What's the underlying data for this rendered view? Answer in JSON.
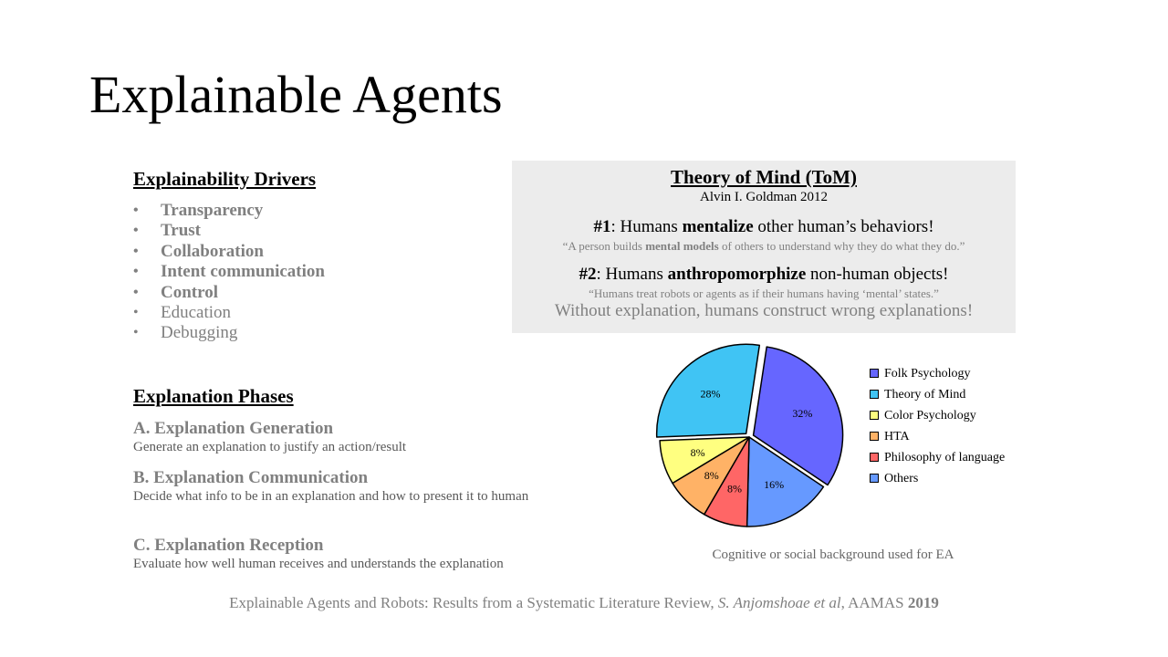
{
  "slide": {
    "title": "Explainable Agents"
  },
  "drivers": {
    "heading": "Explainability Drivers",
    "items": [
      {
        "label": "Transparency",
        "bold": true
      },
      {
        "label": "Trust",
        "bold": true
      },
      {
        "label": "Collaboration",
        "bold": true
      },
      {
        "label": "Intent communication",
        "bold": true
      },
      {
        "label": "Control",
        "bold": true
      },
      {
        "label": "Education",
        "bold": false
      },
      {
        "label": "Debugging",
        "bold": false
      }
    ]
  },
  "phases": {
    "heading": "Explanation Phases",
    "items": [
      {
        "title": "A. Explanation Generation",
        "desc": "Generate an explanation to justify an action/result"
      },
      {
        "title": "B. Explanation Communication",
        "desc": "Decide what info to be in an explanation and how to present it to human"
      },
      {
        "title": "C. Explanation Reception",
        "desc": "Evaluate how well human receives and understands the explanation"
      }
    ]
  },
  "tom": {
    "title": "Theory of Mind (ToM)",
    "author": "Alvin I. Goldman 2012",
    "point1": {
      "num": "#1",
      "pre": ": Humans ",
      "key": "mentalize",
      "post": " other human’s behaviors!"
    },
    "quote1": {
      "pre": "“A person builds ",
      "key": "mental models",
      "post": " of others to understand why they do what they do.”"
    },
    "point2": {
      "num": "#2",
      "pre": ": Humans ",
      "key": "anthropomorphize",
      "post": " non-human objects!"
    },
    "quote2": "“Humans treat robots or agents as if their humans having ‘mental’ states.”",
    "conclusion": "Without explanation, humans construct wrong explanations!"
  },
  "chart_data": {
    "type": "pie",
    "title": "",
    "caption": "Cognitive or social background used for EA",
    "legend_position": "right",
    "slices": [
      {
        "label": "Folk Psychology",
        "value": 32,
        "display": "32%",
        "color": "#6666ff",
        "exploded": true
      },
      {
        "label": "Others",
        "value": 16,
        "display": "16%",
        "color": "#6699ff",
        "exploded": false
      },
      {
        "label": "Philosophy of language",
        "value": 8,
        "display": "8%",
        "color": "#ff6666",
        "exploded": false
      },
      {
        "label": "HTA",
        "value": 8,
        "display": "8%",
        "color": "#ffb266",
        "exploded": false
      },
      {
        "label": "Color Psychology",
        "value": 8,
        "display": "8%",
        "color": "#ffff80",
        "exploded": false
      },
      {
        "label": "Theory of Mind",
        "value": 28,
        "display": "28%",
        "color": "#40c4f4",
        "exploded": true
      }
    ],
    "legend": [
      {
        "label": "Folk Psychology",
        "color": "#6666ff"
      },
      {
        "label": "Theory of Mind",
        "color": "#40c4f4"
      },
      {
        "label": "Color Psychology",
        "color": "#ffff80"
      },
      {
        "label": "HTA",
        "color": "#ffb266"
      },
      {
        "label": "Philosophy of language",
        "color": "#ff6666"
      },
      {
        "label": "Others",
        "color": "#6699ff"
      }
    ]
  },
  "citation": {
    "text": "Explainable Agents and Robots: Results from a Systematic Literature Review, ",
    "authors": "S. Anjomshoae et al",
    "venue": ", AAMAS ",
    "year": "2019"
  }
}
